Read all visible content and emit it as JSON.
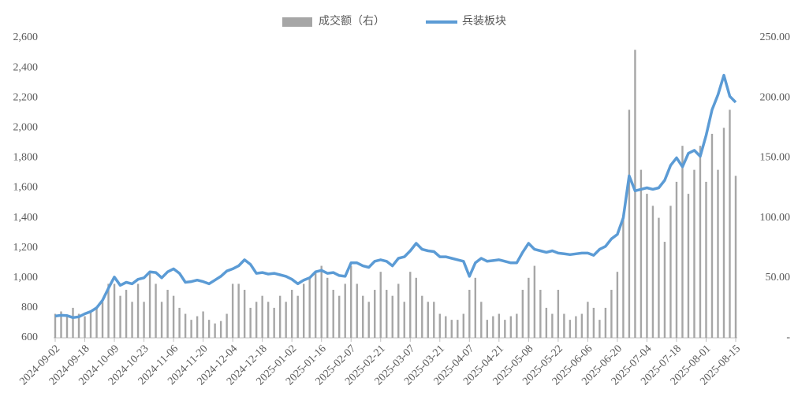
{
  "chart_data": {
    "type": "bar-line",
    "categories": [
      "2024-09-02",
      null,
      null,
      null,
      null,
      "2024-09-18",
      null,
      null,
      null,
      null,
      "2024-10-09",
      null,
      null,
      null,
      null,
      "2024-10-23",
      null,
      null,
      null,
      null,
      "2024-11-06",
      null,
      null,
      null,
      null,
      "2024-11-20",
      null,
      null,
      null,
      null,
      "2024-12-04",
      null,
      null,
      null,
      null,
      "2024-12-18",
      null,
      null,
      null,
      null,
      "2025-01-02",
      null,
      null,
      null,
      null,
      "2025-01-16",
      null,
      null,
      null,
      null,
      "2025-02-07",
      null,
      null,
      null,
      null,
      "2025-02-21",
      null,
      null,
      null,
      null,
      "2025-03-07",
      null,
      null,
      null,
      null,
      "2025-03-21",
      null,
      null,
      null,
      null,
      "2025-04-07",
      null,
      null,
      null,
      null,
      "2025-04-21",
      null,
      null,
      null,
      null,
      "2025-05-08",
      null,
      null,
      null,
      null,
      "2025-05-22",
      null,
      null,
      null,
      null,
      "2025-06-06",
      null,
      null,
      null,
      null,
      "2025-06-20",
      null,
      null,
      null,
      null,
      "2025-07-04",
      null,
      null,
      null,
      null,
      "2025-07-18",
      null,
      null,
      null,
      null,
      "2025-08-01",
      null,
      null,
      null,
      null,
      "2025-08-15"
    ],
    "series": [
      {
        "name": "成交额（右）",
        "type": "bar",
        "axis": "y2",
        "color": "#a6a6a6",
        "values": [
          20,
          22,
          18,
          25,
          20,
          18,
          22,
          25,
          30,
          45,
          45,
          35,
          40,
          30,
          45,
          30,
          55,
          45,
          30,
          40,
          35,
          25,
          20,
          15,
          18,
          22,
          15,
          12,
          14,
          20,
          45,
          45,
          40,
          25,
          30,
          35,
          30,
          25,
          35,
          30,
          40,
          35,
          45,
          50,
          55,
          60,
          50,
          40,
          35,
          45,
          60,
          45,
          35,
          30,
          40,
          55,
          40,
          35,
          45,
          30,
          55,
          50,
          35,
          30,
          30,
          20,
          18,
          15,
          15,
          20,
          40,
          50,
          30,
          15,
          18,
          20,
          15,
          18,
          20,
          40,
          50,
          60,
          40,
          25,
          20,
          40,
          20,
          15,
          18,
          20,
          30,
          25,
          15,
          25,
          40,
          55,
          100,
          190,
          240,
          140,
          120,
          110,
          100,
          80,
          110,
          130,
          160,
          120,
          140,
          160,
          130,
          170,
          140,
          175,
          190,
          135
        ]
      },
      {
        "name": "兵装板块",
        "type": "line",
        "color": "#5b9bd5",
        "values": [
          745,
          750,
          748,
          735,
          740,
          760,
          775,
          800,
          850,
          930,
          1005,
          950,
          970,
          960,
          990,
          1000,
          1040,
          1035,
          1000,
          1040,
          1060,
          1030,
          970,
          975,
          985,
          975,
          960,
          985,
          1010,
          1045,
          1060,
          1080,
          1120,
          1090,
          1030,
          1035,
          1025,
          1030,
          1020,
          1010,
          990,
          960,
          985,
          1000,
          1040,
          1050,
          1030,
          1035,
          1015,
          1010,
          1100,
          1100,
          1080,
          1070,
          1110,
          1120,
          1110,
          1080,
          1130,
          1140,
          1180,
          1230,
          1190,
          1180,
          1175,
          1140,
          1140,
          1130,
          1120,
          1110,
          1010,
          1100,
          1130,
          1110,
          1115,
          1120,
          1110,
          1100,
          1100,
          1170,
          1230,
          1190,
          1180,
          1170,
          1180,
          1165,
          1160,
          1155,
          1160,
          1165,
          1165,
          1150,
          1190,
          1210,
          1260,
          1290,
          1400,
          1680,
          1580,
          1590,
          1600,
          1590,
          1600,
          1650,
          1750,
          1800,
          1740,
          1830,
          1850,
          1810,
          1950,
          2120,
          2220,
          2350,
          2210,
          2170
        ]
      }
    ],
    "ylim": [
      600,
      2600
    ],
    "yticks": [
      600,
      {
        "value": 800,
        "label": "800"
      },
      {
        "value": 1000,
        "label": "1,000"
      },
      {
        "value": 1200,
        "label": "1,200"
      },
      {
        "value": 1400,
        "label": "1,400"
      },
      {
        "value": 1600,
        "label": "1,600"
      },
      {
        "value": 1800,
        "label": "1,800"
      },
      {
        "value": 2000,
        "label": "2,000"
      },
      {
        "value": 2200,
        "label": "2,200"
      },
      {
        "value": 2400,
        "label": "2,400"
      },
      {
        "value": 2600,
        "label": "2,600"
      }
    ],
    "y2lim": [
      0,
      250
    ],
    "y2ticks": [
      {
        "value": 0,
        "label": "-"
      },
      {
        "value": 50,
        "label": "50.00"
      },
      {
        "value": 100,
        "label": "100.00"
      },
      {
        "value": 150,
        "label": "150.00"
      },
      {
        "value": 200,
        "label": "200.00"
      },
      {
        "value": 250,
        "label": "250.00"
      }
    ],
    "legend": "top"
  }
}
